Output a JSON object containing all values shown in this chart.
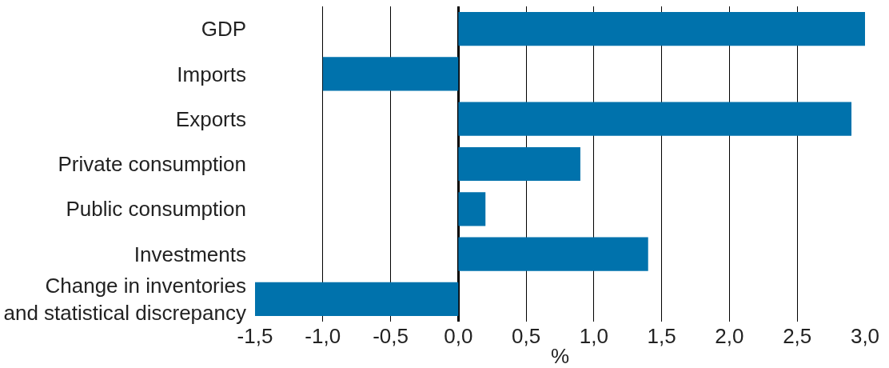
{
  "chart_data": {
    "type": "bar",
    "orientation": "horizontal",
    "xlabel": "%",
    "categories": [
      "GDP",
      "Imports",
      "Exports",
      "Private consumption",
      "Public consumption",
      "Investments",
      "Change in inventories\nand statistical discrepancy"
    ],
    "values": [
      3.0,
      -1.0,
      2.9,
      0.9,
      0.2,
      1.4,
      -1.5
    ],
    "color": "#0072ac",
    "xlim": [
      -1.5,
      3.0
    ],
    "xticks": [
      {
        "value": -1.5,
        "label": "-1,5"
      },
      {
        "value": -1.0,
        "label": "-1,0"
      },
      {
        "value": -0.5,
        "label": "-0,5"
      },
      {
        "value": 0.0,
        "label": "0,0"
      },
      {
        "value": 0.5,
        "label": "0,5"
      },
      {
        "value": 1.0,
        "label": "1,0"
      },
      {
        "value": 1.5,
        "label": "1,5"
      },
      {
        "value": 2.0,
        "label": "2,0"
      },
      {
        "value": 2.5,
        "label": "2,5"
      },
      {
        "value": 3.0,
        "label": "3,0"
      }
    ],
    "grid": "x",
    "legend": false
  }
}
